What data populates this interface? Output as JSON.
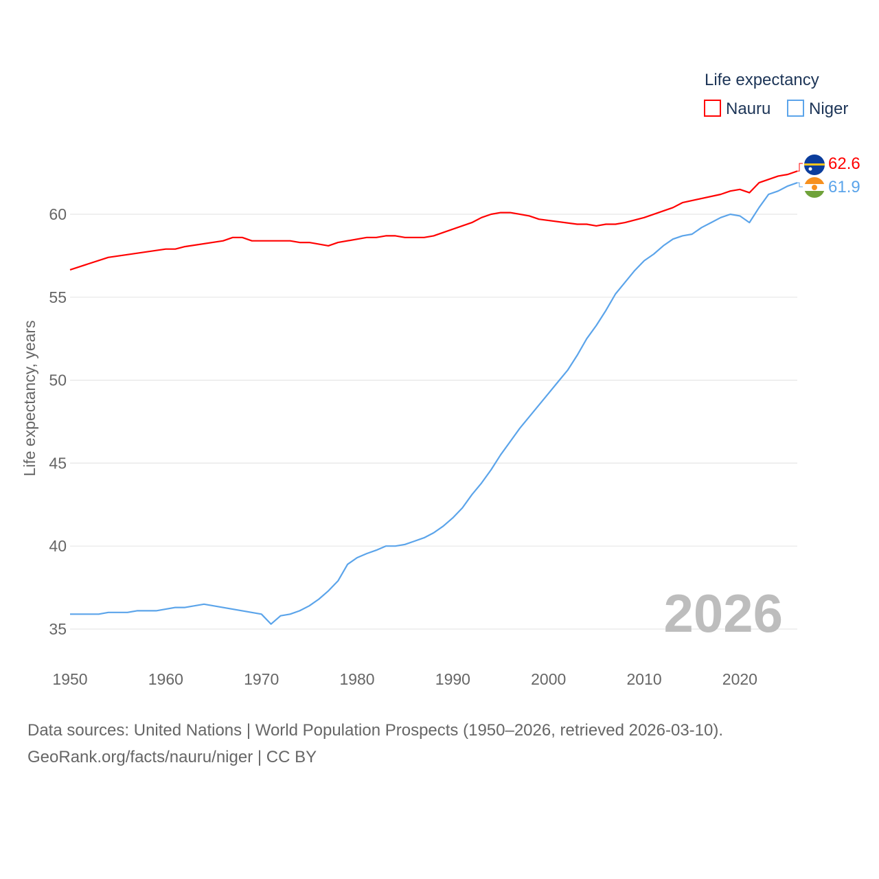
{
  "chart_data": {
    "type": "line",
    "ylabel": "Life expectancy, years",
    "xlabel": "",
    "legend_title": "Life expectancy",
    "legend_position": "top-right",
    "year_watermark": "2026",
    "xlim": [
      1950,
      2026
    ],
    "ylim": [
      33.3,
      63.5
    ],
    "x_ticks": [
      1950,
      1960,
      1970,
      1980,
      1990,
      2000,
      2010,
      2020
    ],
    "y_ticks": [
      35,
      40,
      45,
      50,
      55,
      60
    ],
    "grid": true,
    "series": [
      {
        "name": "Nauru",
        "color": "#ff0000",
        "end_label": "62.6",
        "flag": "nauru-flag",
        "points": [
          [
            1950,
            56.65
          ],
          [
            1954,
            57.4
          ],
          [
            1960,
            57.9
          ],
          [
            1961,
            57.9
          ],
          [
            1962,
            58.05
          ],
          [
            1966,
            58.4
          ],
          [
            1967,
            58.6
          ],
          [
            1968,
            58.6
          ],
          [
            1969,
            58.4
          ],
          [
            1973,
            58.4
          ],
          [
            1974,
            58.3
          ],
          [
            1975,
            58.3
          ],
          [
            1977,
            58.1
          ],
          [
            1978,
            58.3
          ],
          [
            1981,
            58.6
          ],
          [
            1982,
            58.6
          ],
          [
            1983,
            58.7
          ],
          [
            1984,
            58.7
          ],
          [
            1985,
            58.6
          ],
          [
            1987,
            58.6
          ],
          [
            1988,
            58.7
          ],
          [
            1990,
            59.1
          ],
          [
            1992,
            59.5
          ],
          [
            1993,
            59.8
          ],
          [
            1994,
            60.0
          ],
          [
            1995,
            60.1
          ],
          [
            1996,
            60.1
          ],
          [
            1998,
            59.9
          ],
          [
            1999,
            59.7
          ],
          [
            2003,
            59.4
          ],
          [
            2004,
            59.4
          ],
          [
            2005,
            59.3
          ],
          [
            2006,
            59.4
          ],
          [
            2007,
            59.4
          ],
          [
            2008,
            59.5
          ],
          [
            2010,
            59.8
          ],
          [
            2013,
            60.4
          ],
          [
            2014,
            60.7
          ],
          [
            2018,
            61.2
          ],
          [
            2019,
            61.4
          ],
          [
            2020,
            61.5
          ],
          [
            2021,
            61.3
          ],
          [
            2022,
            61.9
          ],
          [
            2024,
            62.3
          ],
          [
            2025,
            62.4
          ],
          [
            2026,
            62.6
          ]
        ]
      },
      {
        "name": "Niger",
        "color": "#5ba4ea",
        "end_label": "61.9",
        "flag": "niger-flag",
        "points": [
          [
            1950,
            35.9
          ],
          [
            1953,
            35.9
          ],
          [
            1954,
            36.0
          ],
          [
            1956,
            36.0
          ],
          [
            1957,
            36.1
          ],
          [
            1959,
            36.1
          ],
          [
            1961,
            36.3
          ],
          [
            1962,
            36.3
          ],
          [
            1964,
            36.5
          ],
          [
            1970,
            35.9
          ],
          [
            1971,
            35.3
          ],
          [
            1972,
            35.8
          ],
          [
            1973,
            35.9
          ],
          [
            1974,
            36.1
          ],
          [
            1975,
            36.4
          ],
          [
            1976,
            36.8
          ],
          [
            1977,
            37.3
          ],
          [
            1978,
            37.9
          ],
          [
            1979,
            38.9
          ],
          [
            1980,
            39.3
          ],
          [
            1981,
            39.55
          ],
          [
            1982,
            39.75
          ],
          [
            1983,
            40.0
          ],
          [
            1984,
            40.0
          ],
          [
            1985,
            40.1
          ],
          [
            1986,
            40.3
          ],
          [
            1987,
            40.5
          ],
          [
            1988,
            40.8
          ],
          [
            1989,
            41.2
          ],
          [
            1990,
            41.7
          ],
          [
            1991,
            42.3
          ],
          [
            1992,
            43.1
          ],
          [
            1993,
            43.8
          ],
          [
            1994,
            44.6
          ],
          [
            1995,
            45.5
          ],
          [
            1996,
            46.3
          ],
          [
            1997,
            47.1
          ],
          [
            1998,
            47.8
          ],
          [
            1999,
            48.5
          ],
          [
            2000,
            49.2
          ],
          [
            2001,
            49.9
          ],
          [
            2002,
            50.6
          ],
          [
            2003,
            51.5
          ],
          [
            2004,
            52.5
          ],
          [
            2005,
            53.3
          ],
          [
            2006,
            54.2
          ],
          [
            2007,
            55.2
          ],
          [
            2008,
            55.9
          ],
          [
            2009,
            56.6
          ],
          [
            2010,
            57.2
          ],
          [
            2011,
            57.6
          ],
          [
            2012,
            58.1
          ],
          [
            2013,
            58.5
          ],
          [
            2014,
            58.7
          ],
          [
            2015,
            58.8
          ],
          [
            2016,
            59.2
          ],
          [
            2017,
            59.5
          ],
          [
            2018,
            59.8
          ],
          [
            2019,
            60.0
          ],
          [
            2020,
            59.9
          ],
          [
            2021,
            59.5
          ],
          [
            2022,
            60.4
          ],
          [
            2023,
            61.2
          ],
          [
            2024,
            61.4
          ],
          [
            2025,
            61.7
          ],
          [
            2026,
            61.9
          ]
        ]
      }
    ]
  },
  "footer": {
    "line1": "Data sources: United Nations | World Population Prospects (1950–2026, retrieved 2026-03-10).",
    "line2": "GeoRank.org/facts/nauru/niger | CC BY"
  }
}
